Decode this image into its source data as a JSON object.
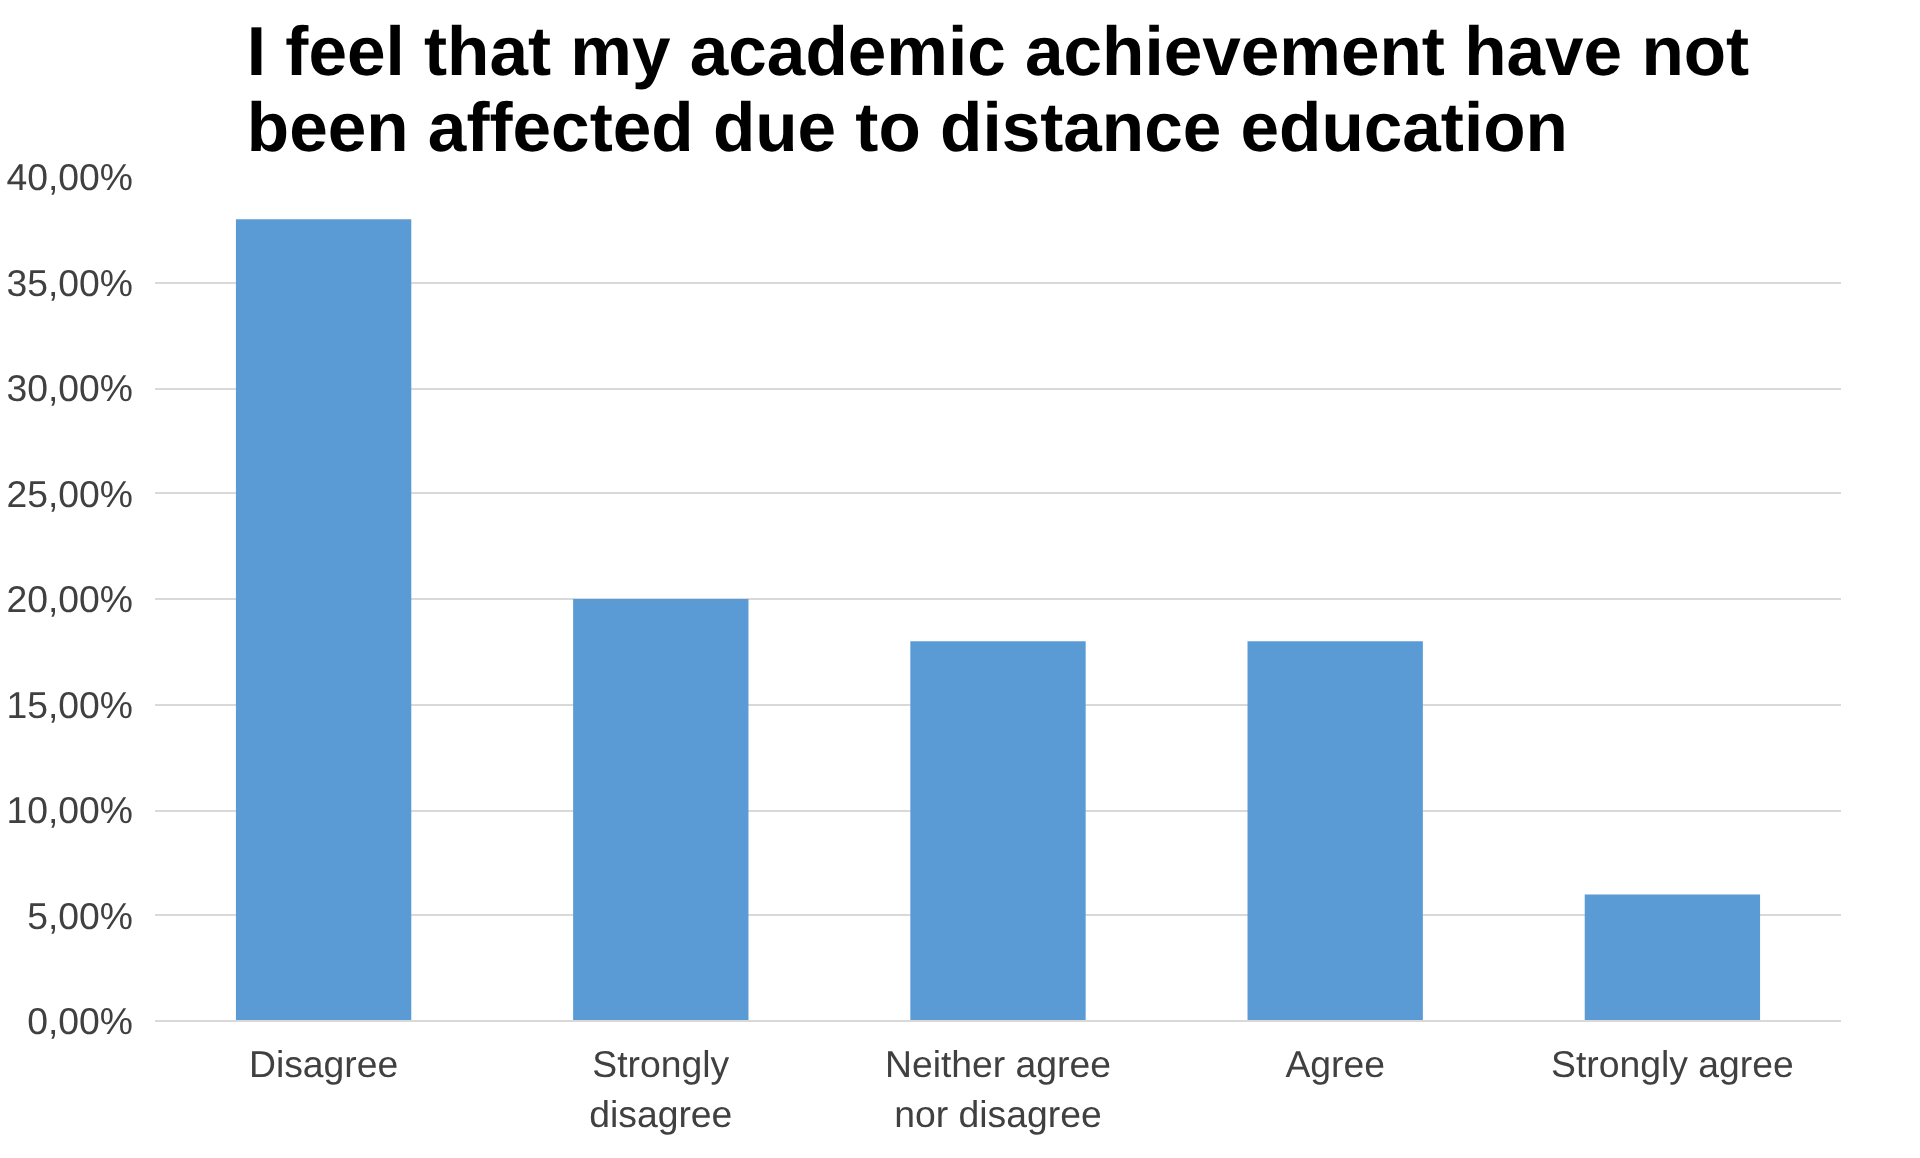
{
  "chart_data": {
    "type": "bar",
    "title": "I feel that my academic achievement have not been affected due to distance education",
    "categories": [
      "Disagree",
      "Strongly disagree",
      "Neither agree nor disagree",
      "Agree",
      "Strongly agree"
    ],
    "values": [
      38,
      20,
      18,
      18,
      6
    ],
    "color": "#5b9bd5",
    "ylim": [
      0,
      40
    ],
    "yticks": [
      {
        "value": 0,
        "label": "0,00%"
      },
      {
        "value": 5,
        "label": "5,00%"
      },
      {
        "value": 10,
        "label": "10,00%"
      },
      {
        "value": 15,
        "label": "15,00%"
      },
      {
        "value": 20,
        "label": "20,00%"
      },
      {
        "value": 25,
        "label": "25,00%"
      },
      {
        "value": 30,
        "label": "30,00%"
      },
      {
        "value": 35,
        "label": "35,00%"
      },
      {
        "value": 40,
        "label": "40,00%"
      }
    ],
    "grid": "y"
  }
}
